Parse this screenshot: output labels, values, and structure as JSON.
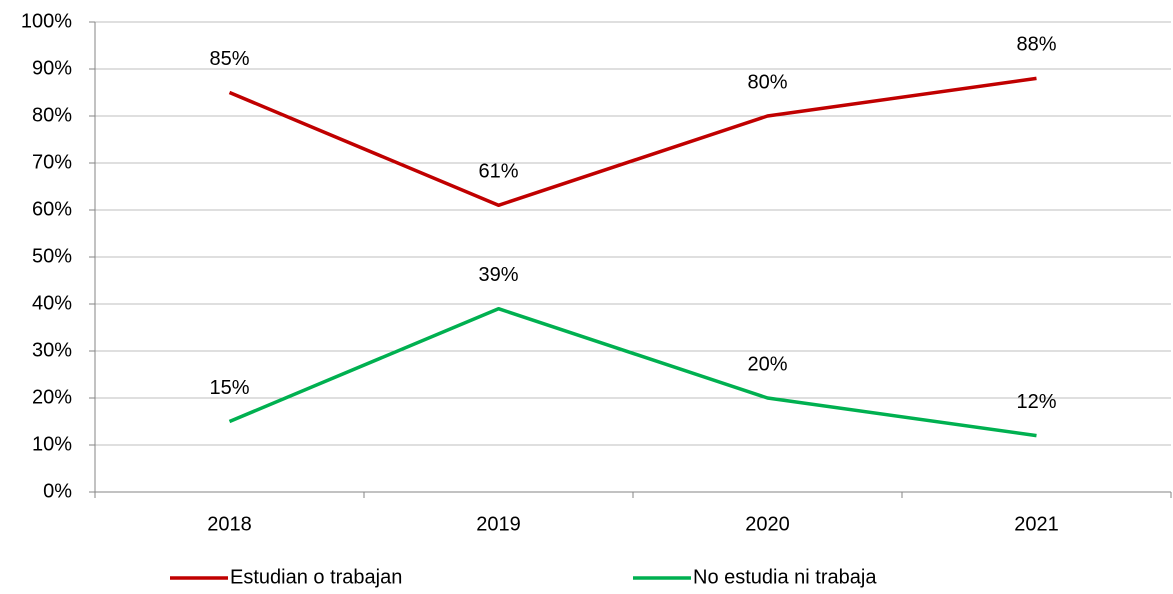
{
  "chart_data": {
    "type": "line",
    "categories": [
      "2018",
      "2019",
      "2020",
      "2021"
    ],
    "series": [
      {
        "name": "Estudian o trabajan",
        "color": "#c00000",
        "values": [
          85,
          61,
          80,
          88
        ],
        "value_labels": [
          "85%",
          "61%",
          "80%",
          "88%"
        ]
      },
      {
        "name": "No estudia ni trabaja",
        "color": "#00b050",
        "values": [
          15,
          39,
          20,
          12
        ],
        "value_labels": [
          "15%",
          "39%",
          "20%",
          "12%"
        ]
      }
    ],
    "ylim": [
      0,
      100
    ],
    "yticks": [
      {
        "value": 0,
        "label": "0%"
      },
      {
        "value": 10,
        "label": "10%"
      },
      {
        "value": 20,
        "label": "20%"
      },
      {
        "value": 30,
        "label": "30%"
      },
      {
        "value": 40,
        "label": "40%"
      },
      {
        "value": 50,
        "label": "50%"
      },
      {
        "value": 60,
        "label": "60%"
      },
      {
        "value": 70,
        "label": "70%"
      },
      {
        "value": 80,
        "label": "80%"
      },
      {
        "value": 90,
        "label": "90%"
      },
      {
        "value": 100,
        "label": "100%"
      }
    ],
    "grid": true,
    "legend": "bottom"
  }
}
